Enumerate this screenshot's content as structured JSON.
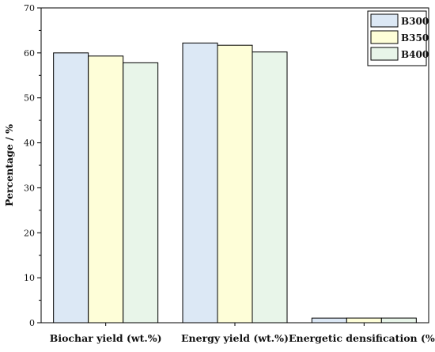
{
  "chart_data": {
    "type": "bar",
    "categories": [
      "Biochar yield (wt.%)",
      "Energy yield (wt.%)",
      "Energetic densification (%)"
    ],
    "series": [
      {
        "name": "B300",
        "values": [
          60.0,
          62.2,
          1.03
        ],
        "color": "#dce8f5"
      },
      {
        "name": "B350",
        "values": [
          59.3,
          61.7,
          1.04
        ],
        "color": "#fefed8"
      },
      {
        "name": "B400",
        "values": [
          57.8,
          60.2,
          1.04
        ],
        "color": "#e8f5e9"
      }
    ],
    "xlabel": "",
    "ylabel": "Percentage / %",
    "ylim": [
      0,
      70
    ],
    "yticks": [
      "0",
      "10",
      "20",
      "30",
      "40",
      "50",
      "60",
      "70"
    ],
    "grid": false,
    "legend_position": "top-right"
  }
}
